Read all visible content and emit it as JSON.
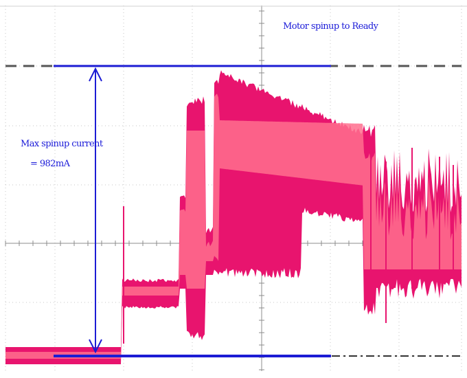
{
  "chart_data": {
    "type": "line",
    "title": "Motor spinup to Ready",
    "annotation_lines": [
      "Max spinup current",
      "= 982mA"
    ],
    "grid": true,
    "colors": {
      "trace_dark": "#e8146e",
      "trace_light": "#ff6f8e",
      "markers": "#1c1cd4",
      "grid": "#c4c4c4",
      "reference": "#555555"
    },
    "measurement": {
      "max_current_label": "= 982mA"
    }
  }
}
